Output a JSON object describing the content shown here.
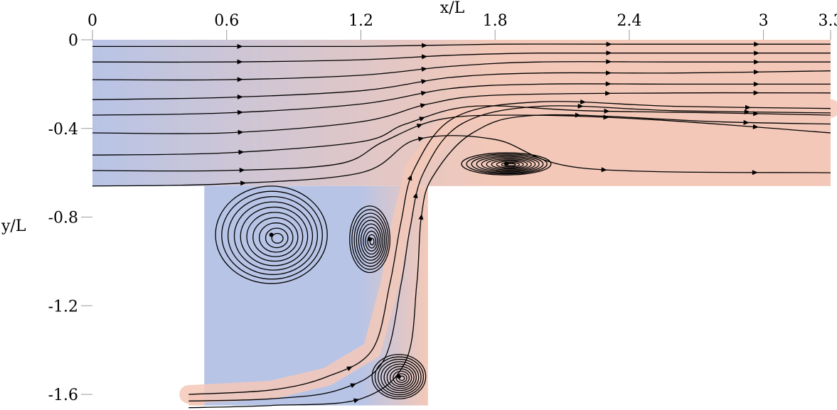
{
  "chart_data": {
    "type": "streamline",
    "xlabel": "x/L",
    "ylabel": "y/L",
    "x_ticks": [
      "0",
      "0.6",
      "1.2",
      "1.8",
      "2.4",
      "3",
      "3.3"
    ],
    "x_tick_values": [
      0,
      0.6,
      1.2,
      1.8,
      2.4,
      3.0,
      3.3
    ],
    "y_ticks": [
      "0",
      "-0.4",
      "-0.8",
      "-1.2",
      "-1.6"
    ],
    "y_tick_values": [
      0,
      -0.4,
      -0.8,
      -1.2,
      -1.6
    ],
    "xlim": [
      0,
      3.3
    ],
    "ylim": [
      -1.65,
      0
    ],
    "domain": {
      "channel": {
        "x": [
          0,
          3.3
        ],
        "y": [
          -0.66,
          0
        ]
      },
      "branch": {
        "x": [
          0.5,
          1.5
        ],
        "y": [
          -1.65,
          -0.66
        ]
      },
      "inlet": {
        "x": [
          0.43,
          0.5
        ],
        "y": [
          -1.65,
          -1.6
        ]
      }
    },
    "colors": {
      "low_velocity": "#b8c4e6",
      "high_velocity": "#f3c8b8",
      "streamline": "#000000"
    },
    "streamlines": [
      [
        [
          0,
          -0.03
        ],
        [
          0.6,
          -0.03
        ],
        [
          1.2,
          -0.03
        ],
        [
          1.8,
          -0.02
        ],
        [
          2.4,
          -0.02
        ],
        [
          3.3,
          -0.02
        ]
      ],
      [
        [
          0,
          -0.1
        ],
        [
          0.6,
          -0.1
        ],
        [
          1.2,
          -0.09
        ],
        [
          1.6,
          -0.07
        ],
        [
          2.0,
          -0.06
        ],
        [
          2.6,
          -0.06
        ],
        [
          3.3,
          -0.06
        ]
      ],
      [
        [
          0,
          -0.18
        ],
        [
          0.6,
          -0.18
        ],
        [
          1.2,
          -0.16
        ],
        [
          1.6,
          -0.12
        ],
        [
          2.0,
          -0.1
        ],
        [
          2.6,
          -0.1
        ],
        [
          3.3,
          -0.1
        ]
      ],
      [
        [
          0,
          -0.27
        ],
        [
          0.6,
          -0.26
        ],
        [
          1.2,
          -0.23
        ],
        [
          1.6,
          -0.17
        ],
        [
          2.0,
          -0.15
        ],
        [
          2.6,
          -0.15
        ],
        [
          3.3,
          -0.14
        ]
      ],
      [
        [
          0,
          -0.34
        ],
        [
          0.6,
          -0.33
        ],
        [
          1.2,
          -0.29
        ],
        [
          1.6,
          -0.22
        ],
        [
          2.0,
          -0.2
        ],
        [
          2.6,
          -0.2
        ],
        [
          3.3,
          -0.2
        ]
      ],
      [
        [
          0,
          -0.42
        ],
        [
          0.6,
          -0.42
        ],
        [
          1.2,
          -0.37
        ],
        [
          1.5,
          -0.29
        ],
        [
          1.8,
          -0.25
        ],
        [
          2.6,
          -0.24
        ],
        [
          3.3,
          -0.24
        ]
      ],
      [
        [
          0,
          -0.52
        ],
        [
          0.6,
          -0.51
        ],
        [
          1.2,
          -0.46
        ],
        [
          1.4,
          -0.38
        ],
        [
          1.7,
          -0.3
        ],
        [
          2.2,
          -0.32
        ],
        [
          2.8,
          -0.33
        ],
        [
          3.3,
          -0.34
        ]
      ],
      [
        [
          0,
          -0.59
        ],
        [
          0.6,
          -0.59
        ],
        [
          1.1,
          -0.56
        ],
        [
          1.3,
          -0.46
        ],
        [
          1.55,
          -0.36
        ],
        [
          1.9,
          -0.34
        ],
        [
          2.5,
          -0.36
        ],
        [
          3.3,
          -0.42
        ]
      ],
      [
        [
          0,
          -0.66
        ],
        [
          0.6,
          -0.65
        ],
        [
          1.2,
          -0.6
        ],
        [
          1.45,
          -0.45
        ],
        [
          1.8,
          -0.45
        ],
        [
          2.2,
          -0.58
        ],
        [
          3.3,
          -0.6
        ]
      ],
      [
        [
          0.43,
          -1.63
        ],
        [
          0.8,
          -1.62
        ],
        [
          1.1,
          -1.58
        ],
        [
          1.3,
          -1.45
        ],
        [
          1.38,
          -1.1
        ],
        [
          1.42,
          -0.85
        ],
        [
          1.48,
          -0.6
        ],
        [
          1.65,
          -0.38
        ],
        [
          2.0,
          -0.3
        ],
        [
          2.6,
          -0.32
        ],
        [
          3.3,
          -0.33
        ]
      ],
      [
        [
          0.43,
          -1.6
        ],
        [
          0.8,
          -1.58
        ],
        [
          1.05,
          -1.52
        ],
        [
          1.25,
          -1.4
        ],
        [
          1.33,
          -1.1
        ],
        [
          1.38,
          -0.82
        ],
        [
          1.44,
          -0.58
        ],
        [
          1.62,
          -0.35
        ],
        [
          2.0,
          -0.28
        ],
        [
          2.6,
          -0.3
        ],
        [
          3.3,
          -0.31
        ]
      ],
      [
        [
          0.43,
          -1.66
        ],
        [
          0.8,
          -1.65
        ],
        [
          1.2,
          -1.62
        ],
        [
          1.4,
          -1.45
        ],
        [
          1.45,
          -1.1
        ],
        [
          1.47,
          -0.8
        ],
        [
          1.52,
          -0.62
        ],
        [
          1.7,
          -0.42
        ],
        [
          2.0,
          -0.34
        ],
        [
          2.8,
          -0.37
        ],
        [
          3.3,
          -0.38
        ]
      ]
    ],
    "vortices": [
      {
        "name": "",
        "center": [
          0.8,
          -0.88
        ],
        "rx": 0.25,
        "ry": 0.22
      },
      {
        "name": "",
        "center": [
          1.24,
          -0.9
        ],
        "rx": 0.09,
        "ry": 0.15
      },
      {
        "name": "",
        "center": [
          1.37,
          -1.52
        ],
        "rx": 0.12,
        "ry": 0.1
      },
      {
        "name": "",
        "center": [
          1.85,
          -0.56
        ],
        "rx": 0.2,
        "ry": 0.05
      }
    ]
  }
}
